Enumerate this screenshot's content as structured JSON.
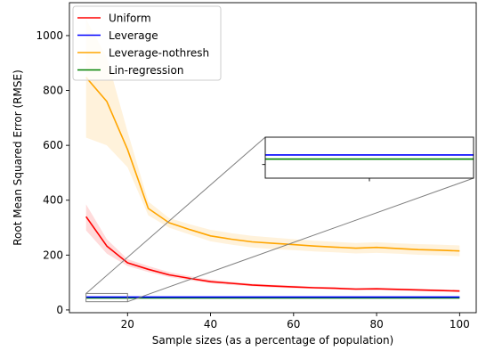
{
  "chart_data": {
    "type": "line",
    "title": "",
    "xlabel": "Sample sizes (as a percentage of population)",
    "ylabel": "Root Mean Squared Error (RMSE)",
    "xlim": [
      6,
      104
    ],
    "ylim": [
      -10,
      1120
    ],
    "xticks": [
      20,
      40,
      60,
      80,
      100
    ],
    "yticks": [
      0,
      200,
      400,
      600,
      800,
      1000
    ],
    "grid": false,
    "legend_position": "top-left",
    "series": [
      {
        "name": "Uniform",
        "color": "#ff0000",
        "x": [
          10,
          15,
          20,
          25,
          30,
          35,
          40,
          45,
          50,
          55,
          60,
          65,
          70,
          75,
          80,
          85,
          90,
          95,
          100
        ],
        "y": [
          340,
          233,
          172,
          148,
          128,
          115,
          103,
          97,
          91,
          87,
          84,
          81,
          79,
          76,
          77,
          75,
          73,
          71,
          69
        ],
        "band_lower": [
          290,
          205,
          160,
          138,
          120,
          108,
          97,
          91,
          86,
          82,
          79,
          77,
          75,
          72,
          73,
          71,
          69,
          67,
          65
        ],
        "band_upper": [
          385,
          258,
          185,
          160,
          138,
          123,
          110,
          103,
          96,
          92,
          89,
          85,
          83,
          80,
          81,
          79,
          77,
          75,
          73
        ]
      },
      {
        "name": "Leverage",
        "color": "#0000ff",
        "x": [
          10,
          100
        ],
        "y": [
          47,
          47
        ]
      },
      {
        "name": "Leverage-nothresh",
        "color": "#ffa500",
        "x": [
          10,
          15,
          20,
          25,
          30,
          35,
          40,
          45,
          50,
          55,
          60,
          65,
          70,
          75,
          80,
          85,
          90,
          95,
          100
        ],
        "y": [
          848,
          760,
          585,
          370,
          318,
          293,
          270,
          258,
          248,
          243,
          238,
          233,
          229,
          225,
          228,
          224,
          220,
          218,
          215
        ],
        "band_lower": [
          628,
          600,
          520,
          345,
          300,
          275,
          250,
          238,
          228,
          222,
          218,
          213,
          210,
          206,
          208,
          205,
          201,
          199,
          196
        ],
        "band_upper": [
          1060,
          920,
          650,
          395,
          335,
          312,
          292,
          280,
          270,
          264,
          258,
          252,
          248,
          244,
          247,
          243,
          240,
          238,
          235
        ]
      },
      {
        "name": "Lin-regression",
        "color": "#008000",
        "x": [
          10,
          100
        ],
        "y": [
          44,
          44
        ]
      }
    ],
    "inset": {
      "source_xlim": [
        10,
        20
      ],
      "source_ylim": [
        30,
        60
      ],
      "connector_color": "#808080"
    }
  }
}
